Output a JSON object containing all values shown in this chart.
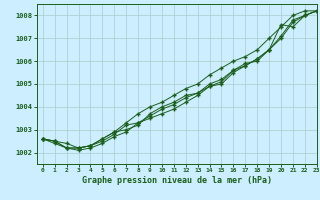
{
  "title": "Graphe pression niveau de la mer (hPa)",
  "background_color": "#cceeff",
  "grid_color": "#aacccc",
  "line_color": "#1a5e1a",
  "marker_color": "#1a5e1a",
  "xlim": [
    -0.5,
    23
  ],
  "ylim": [
    1001.5,
    1008.5
  ],
  "yticks": [
    1002,
    1003,
    1004,
    1005,
    1006,
    1007,
    1008
  ],
  "xticks": [
    0,
    1,
    2,
    3,
    4,
    5,
    6,
    7,
    8,
    9,
    10,
    11,
    12,
    13,
    14,
    15,
    16,
    17,
    18,
    19,
    20,
    21,
    22,
    23
  ],
  "series": [
    [
      1002.6,
      1002.5,
      1002.2,
      1002.2,
      1002.3,
      1002.5,
      1002.8,
      1003.2,
      1003.3,
      1003.5,
      1003.7,
      1003.9,
      1004.2,
      1004.5,
      1004.9,
      1005.0,
      1005.5,
      1005.8,
      1006.1,
      1006.5,
      1007.6,
      1007.5,
      1008.0,
      1008.2
    ],
    [
      1002.6,
      1002.5,
      1002.4,
      1002.2,
      1002.3,
      1002.6,
      1002.9,
      1003.0,
      1003.2,
      1003.7,
      1004.0,
      1004.2,
      1004.5,
      1004.6,
      1004.9,
      1005.1,
      1005.6,
      1005.9,
      1006.0,
      1006.5,
      1007.0,
      1007.7,
      1008.0,
      1008.2
    ],
    [
      1002.6,
      1002.5,
      1002.2,
      1002.1,
      1002.2,
      1002.4,
      1002.7,
      1002.9,
      1003.3,
      1003.6,
      1003.9,
      1004.1,
      1004.4,
      1004.6,
      1005.0,
      1005.2,
      1005.6,
      1005.8,
      1006.1,
      1006.5,
      1007.1,
      1007.8,
      1008.0,
      1008.2
    ],
    [
      1002.6,
      1002.4,
      1002.2,
      1002.2,
      1002.3,
      1002.6,
      1002.9,
      1003.3,
      1003.7,
      1004.0,
      1004.2,
      1004.5,
      1004.8,
      1005.0,
      1005.4,
      1005.7,
      1006.0,
      1006.2,
      1006.5,
      1007.0,
      1007.5,
      1008.0,
      1008.2,
      1008.2
    ]
  ],
  "figsize": [
    3.2,
    2.0
  ],
  "dpi": 100
}
